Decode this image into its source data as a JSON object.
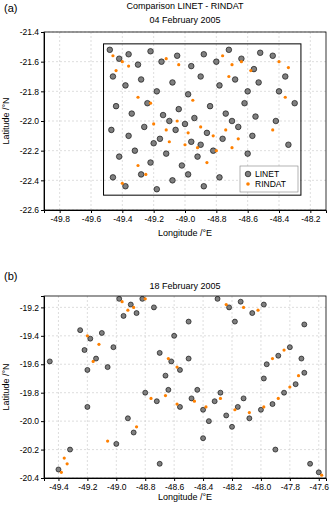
{
  "chart_data": [
    {
      "type": "scatter",
      "panel": "(a)",
      "title": "Comparison LINET - RINDAT",
      "subtitle": "04 February 2005",
      "x_label": "Longitude /°E",
      "y_label": "Latitude /°N",
      "xlim": [
        -49.9,
        -48.1
      ],
      "ylim": [
        -22.6,
        -21.4
      ],
      "xticks": [
        -49.8,
        -49.6,
        -49.4,
        -49.2,
        {
          "value": -49.0,
          "label": "-49.0"
        },
        -48.8,
        -48.6,
        -48.4,
        -48.2
      ],
      "yticks": [
        -22.6,
        -22.4,
        -22.2,
        {
          "value": -22.0,
          "label": "-22.0"
        },
        -21.8,
        -21.6,
        -21.4
      ],
      "grid": true,
      "legend": "lower right",
      "box": {
        "x": [
          -49.52,
          -48.26
        ],
        "y": [
          -22.5,
          -21.48
        ]
      },
      "series": [
        {
          "name": "LINET",
          "color": "#7f7f7f",
          "marker": "circle",
          "x": [
            -49.48,
            -49.42,
            -49.36,
            -49.3,
            -49.22,
            -49.15,
            -49.05,
            -48.96,
            -48.88,
            -48.8,
            -48.72,
            -48.64,
            -48.56,
            -48.52,
            -49.46,
            -49.38,
            -49.28,
            -49.18,
            -49.08,
            -48.98,
            -48.9,
            -48.78,
            -48.68,
            -48.6,
            -48.53,
            -49.44,
            -49.34,
            -49.24,
            -49.14,
            -49.04,
            -48.94,
            -48.84,
            -48.74,
            -48.62,
            -48.55,
            -49.47,
            -49.36,
            -49.26,
            -49.16,
            -49.06,
            -48.96,
            -48.86,
            -48.76,
            -48.66,
            -48.57,
            -49.42,
            -49.32,
            -49.22,
            -49.12,
            -49.02,
            -48.92,
            -48.82,
            -48.6,
            -49.46,
            -49.38,
            -49.28,
            -49.18,
            -49.08,
            -48.98,
            -48.88,
            -48.78,
            -49.1,
            -49.0,
            -48.9,
            -49.2,
            -48.7,
            -48.44,
            -48.36,
            -48.3,
            -48.42,
            -48.34,
            -48.4
          ],
          "y": [
            -21.52,
            -21.58,
            -21.55,
            -21.62,
            -21.53,
            -21.6,
            -21.56,
            -21.63,
            -21.55,
            -21.6,
            -21.52,
            -21.58,
            -21.65,
            -21.54,
            -21.7,
            -21.76,
            -21.72,
            -21.8,
            -21.74,
            -21.82,
            -21.7,
            -21.76,
            -21.72,
            -21.8,
            -21.74,
            -21.9,
            -21.95,
            -21.88,
            -21.96,
            -21.92,
            -21.98,
            -21.9,
            -21.95,
            -21.88,
            -21.97,
            -22.06,
            -22.1,
            -22.04,
            -22.12,
            -22.06,
            -22.14,
            -22.08,
            -22.12,
            -22.04,
            -22.1,
            -22.24,
            -22.2,
            -22.28,
            -22.22,
            -22.3,
            -22.24,
            -22.2,
            -22.22,
            -22.38,
            -22.44,
            -22.36,
            -22.46,
            -22.4,
            -22.36,
            -22.44,
            -22.38,
            -22.0,
            -22.02,
            -22.16,
            -22.15,
            -22.0,
            -21.56,
            -21.7,
            -21.88,
            -22.0,
            -22.16,
            -21.8
          ]
        },
        {
          "name": "RINDAT",
          "color": "#ff8000",
          "marker": "circle",
          "x": [
            -49.46,
            -49.4,
            -49.44,
            -49.36,
            -49.12,
            -49.04,
            -48.76,
            -48.7,
            -48.64,
            -48.72,
            -48.58,
            -49.3,
            -49.22,
            -48.95,
            -49.2,
            -49.12,
            -49.05,
            -48.98,
            -48.9,
            -48.82,
            -48.74,
            -48.66,
            -49.1,
            -49.0,
            -48.92,
            -48.8,
            -48.7,
            -49.3,
            -49.25,
            -48.86,
            -49.4,
            -48.4,
            -48.34,
            -48.44,
            -48.36
          ],
          "y": [
            -21.56,
            -21.6,
            -21.66,
            -21.63,
            -21.58,
            -21.62,
            -21.56,
            -21.62,
            -21.6,
            -21.7,
            -21.66,
            -21.84,
            -21.88,
            -21.86,
            -22.02,
            -22.06,
            -22.0,
            -22.08,
            -22.04,
            -22.1,
            -22.06,
            -22.12,
            -22.14,
            -22.16,
            -22.18,
            -22.2,
            -22.18,
            -22.3,
            -22.36,
            -22.28,
            -22.42,
            -21.6,
            -21.64,
            -22.06,
            -21.84
          ]
        }
      ]
    },
    {
      "type": "scatter",
      "panel": "(b)",
      "title": "18 February 2005",
      "x_label": "Longitude /°E",
      "y_label": "Latitude /°N",
      "xlim": [
        -49.5,
        -47.55
      ],
      "ylim": [
        -20.4,
        -19.12
      ],
      "xticks": [
        -49.4,
        -49.2,
        {
          "value": -49.0,
          "label": "-49.0"
        },
        -48.8,
        -48.6,
        -48.4,
        -48.2,
        {
          "value": -48.0,
          "label": "-48.0"
        },
        -47.8,
        -47.6
      ],
      "yticks": [
        -20.4,
        -20.2,
        {
          "value": -20.0,
          "label": "-20.0"
        },
        -19.8,
        -19.6,
        -19.4,
        -19.2
      ],
      "grid": true,
      "series": [
        {
          "color": "#7f7f7f",
          "marker": "circle",
          "x": [
            -48.98,
            -48.9,
            -48.82,
            -48.74,
            -48.86,
            -48.95,
            -49.25,
            -49.18,
            -49.1,
            -49.22,
            -49.14,
            -49.06,
            -49.2,
            -49.02,
            -48.7,
            -48.62,
            -48.56,
            -48.66,
            -48.5,
            -48.8,
            -48.72,
            -48.64,
            -48.56,
            -48.48,
            -48.4,
            -48.32,
            -48.24,
            -48.16,
            -48.08,
            -48.0,
            -47.92,
            -47.84,
            -47.76,
            -47.7,
            -48.44,
            -48.28,
            -48.12,
            -48.36,
            -48.2,
            -47.96,
            -47.88,
            -47.8,
            -47.72,
            -47.98,
            -48.3,
            -48.22,
            -48.14,
            -48.06,
            -47.98,
            -48.18,
            -48.92,
            -48.88,
            -49.0,
            -48.4,
            -47.6,
            -47.66,
            -49.4,
            -49.32,
            -49.46,
            -48.5,
            -47.9,
            -48.7,
            -49.2,
            -48.6,
            -47.7
          ],
          "y": [
            -19.14,
            -19.18,
            -19.14,
            -19.2,
            -19.24,
            -19.26,
            -19.36,
            -19.42,
            -19.38,
            -19.5,
            -19.56,
            -19.62,
            -19.64,
            -19.48,
            -19.52,
            -19.58,
            -19.64,
            -19.68,
            -19.56,
            -19.8,
            -19.86,
            -19.78,
            -19.9,
            -19.84,
            -19.92,
            -19.86,
            -19.96,
            -19.9,
            -19.98,
            -19.92,
            -19.88,
            -19.8,
            -19.74,
            -19.66,
            -19.78,
            -19.8,
            -19.84,
            -20.0,
            -20.04,
            -19.6,
            -19.54,
            -19.48,
            -19.56,
            -19.7,
            -19.14,
            -19.2,
            -19.16,
            -19.24,
            -19.18,
            -19.3,
            -19.98,
            -20.08,
            -20.16,
            -20.12,
            -20.36,
            -20.3,
            -20.34,
            -20.2,
            -19.58,
            -19.3,
            -20.2,
            -20.3,
            -19.9,
            -19.4,
            -19.32
          ]
        },
        {
          "color": "#ff8000",
          "marker": "circle",
          "x": [
            -48.96,
            -48.88,
            -48.8,
            -48.92,
            -49.2,
            -49.12,
            -49.16,
            -48.64,
            -48.58,
            -48.76,
            -48.66,
            -48.58,
            -48.46,
            -48.38,
            -48.28,
            -48.18,
            -48.08,
            -47.98,
            -47.88,
            -47.8,
            -47.74,
            -47.92,
            -47.84,
            -48.24,
            -48.12,
            -48.02,
            -49.38,
            -49.34,
            -49.36,
            -47.58,
            -49.06,
            -48.86
          ],
          "y": [
            -19.16,
            -19.2,
            -19.14,
            -19.22,
            -19.4,
            -19.46,
            -19.58,
            -19.56,
            -19.62,
            -19.84,
            -19.82,
            -19.88,
            -19.86,
            -19.9,
            -19.84,
            -19.92,
            -19.94,
            -19.9,
            -19.84,
            -19.76,
            -19.68,
            -19.56,
            -19.5,
            -19.18,
            -19.2,
            -19.22,
            -20.36,
            -20.3,
            -20.26,
            -20.38,
            -20.14,
            -20.04
          ]
        }
      ]
    }
  ]
}
